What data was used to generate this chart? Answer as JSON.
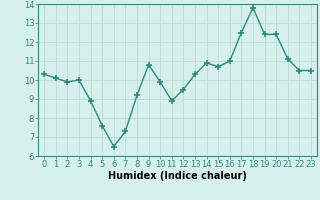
{
  "x": [
    0,
    1,
    2,
    3,
    4,
    5,
    6,
    7,
    8,
    9,
    10,
    11,
    12,
    13,
    14,
    15,
    16,
    17,
    18,
    19,
    20,
    21,
    22,
    23
  ],
  "y": [
    10.3,
    10.1,
    9.9,
    10.0,
    8.9,
    7.6,
    6.5,
    7.3,
    9.2,
    10.8,
    9.9,
    8.9,
    9.5,
    10.3,
    10.9,
    10.7,
    11.0,
    12.5,
    13.8,
    12.4,
    12.4,
    11.1,
    10.5,
    10.5
  ],
  "line_color": "#2e8b7a",
  "marker": "+",
  "marker_size": 5,
  "marker_linewidth": 1.2,
  "background_color": "#d6f0ee",
  "grid_color": "#c0dedd",
  "xlabel": "Humidex (Indice chaleur)",
  "xlabel_fontsize": 7,
  "tick_fontsize": 6,
  "ylim": [
    6,
    14
  ],
  "xlim": [
    -0.5,
    23.5
  ],
  "yticks": [
    6,
    7,
    8,
    9,
    10,
    11,
    12,
    13,
    14
  ],
  "xticks": [
    0,
    1,
    2,
    3,
    4,
    5,
    6,
    7,
    8,
    9,
    10,
    11,
    12,
    13,
    14,
    15,
    16,
    17,
    18,
    19,
    20,
    21,
    22,
    23
  ]
}
